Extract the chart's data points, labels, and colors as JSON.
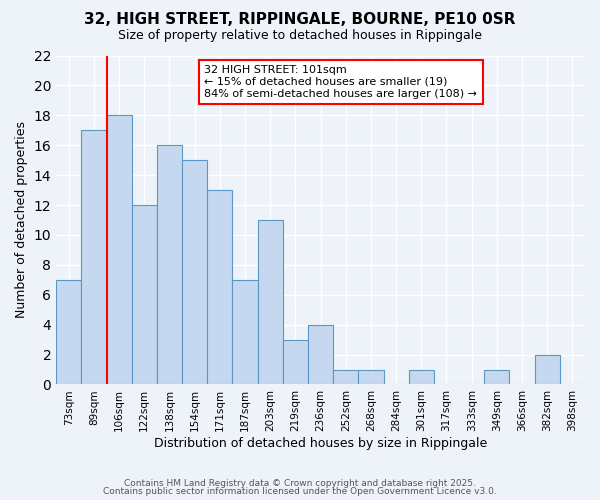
{
  "title": "32, HIGH STREET, RIPPINGALE, BOURNE, PE10 0SR",
  "subtitle": "Size of property relative to detached houses in Rippingale",
  "xlabel": "Distribution of detached houses by size in Rippingale",
  "ylabel": "Number of detached properties",
  "bins": [
    "73sqm",
    "89sqm",
    "106sqm",
    "122sqm",
    "138sqm",
    "154sqm",
    "171sqm",
    "187sqm",
    "203sqm",
    "219sqm",
    "236sqm",
    "252sqm",
    "268sqm",
    "284sqm",
    "301sqm",
    "317sqm",
    "333sqm",
    "349sqm",
    "366sqm",
    "382sqm",
    "398sqm"
  ],
  "values": [
    7,
    17,
    18,
    12,
    16,
    15,
    13,
    7,
    11,
    3,
    4,
    1,
    1,
    0,
    1,
    0,
    0,
    1,
    0,
    2,
    0
  ],
  "bar_color": "#c5d8f0",
  "bar_edge_color": "#5a96c8",
  "background_color": "#eef3fa",
  "grid_color": "#ffffff",
  "annotation_title": "32 HIGH STREET: 101sqm",
  "annotation_line1": "← 15% of detached houses are smaller (19)",
  "annotation_line2": "84% of semi-detached houses are larger (108) →",
  "redline_bin_index": 2,
  "ylim": [
    0,
    22
  ],
  "yticks": [
    0,
    2,
    4,
    6,
    8,
    10,
    12,
    14,
    16,
    18,
    20,
    22
  ],
  "footer1": "Contains HM Land Registry data © Crown copyright and database right 2025.",
  "footer2": "Contains public sector information licensed under the Open Government Licence v3.0."
}
